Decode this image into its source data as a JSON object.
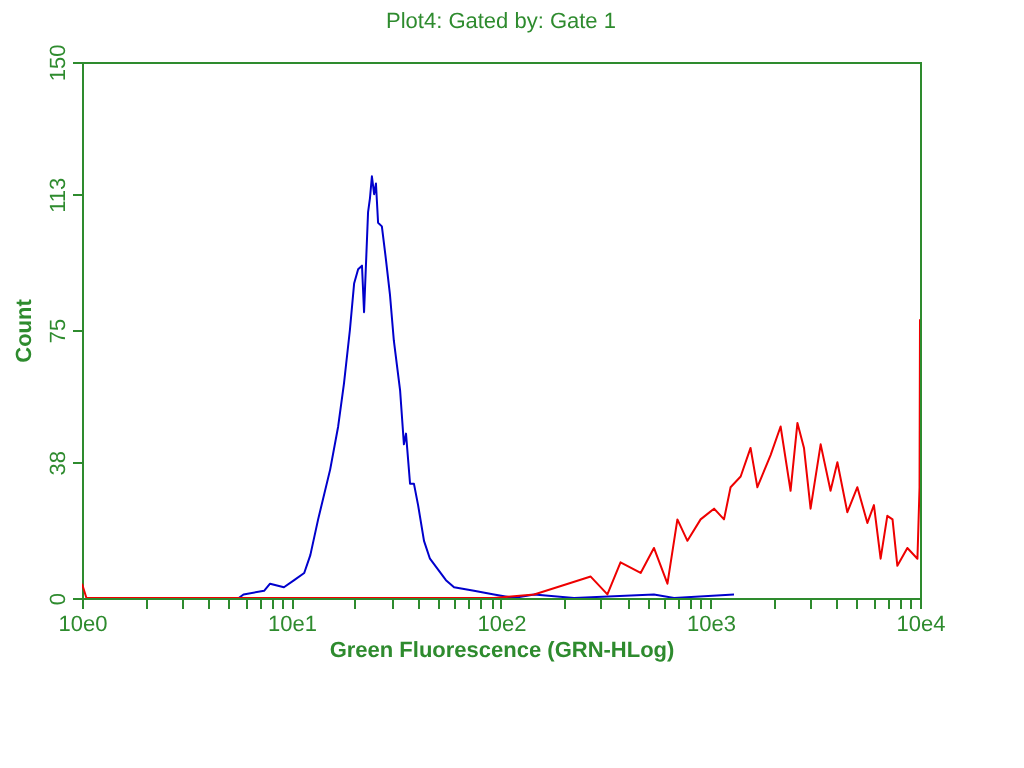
{
  "chart_data": {
    "type": "line",
    "title": "Plot4:  Gated by: Gate 1",
    "xlabel": "Green Fluorescence (GRN-HLog)",
    "ylabel": "Count",
    "log": "x",
    "grid": false,
    "xlim": [
      10,
      100000
    ],
    "ylim": [
      0,
      150
    ],
    "yticks": [
      0,
      38,
      75,
      113,
      150
    ],
    "xticks": [
      {
        "value": 10,
        "label": "10e0"
      },
      {
        "value": 20,
        "label": null
      },
      {
        "value": 30,
        "label": null
      },
      {
        "value": 40,
        "label": null
      },
      {
        "value": 50,
        "label": null
      },
      {
        "value": 60,
        "label": null
      },
      {
        "value": 70,
        "label": null
      },
      {
        "value": 80,
        "label": null
      },
      {
        "value": 90,
        "label": null
      },
      {
        "value": 100,
        "label": "10e1"
      },
      {
        "value": 200,
        "label": null
      },
      {
        "value": 300,
        "label": null
      },
      {
        "value": 400,
        "label": null
      },
      {
        "value": 500,
        "label": null
      },
      {
        "value": 600,
        "label": null
      },
      {
        "value": 700,
        "label": null
      },
      {
        "value": 800,
        "label": null
      },
      {
        "value": 900,
        "label": null
      },
      {
        "value": 1000,
        "label": "10e2"
      },
      {
        "value": 2000,
        "label": null
      },
      {
        "value": 3000,
        "label": null
      },
      {
        "value": 4000,
        "label": null
      },
      {
        "value": 5000,
        "label": null
      },
      {
        "value": 6000,
        "label": null
      },
      {
        "value": 7000,
        "label": null
      },
      {
        "value": 8000,
        "label": null
      },
      {
        "value": 9000,
        "label": null
      },
      {
        "value": 10000,
        "label": "10e3"
      },
      {
        "value": 20000,
        "label": null
      },
      {
        "value": 30000,
        "label": null
      },
      {
        "value": 40000,
        "label": null
      },
      {
        "value": 50000,
        "label": null
      },
      {
        "value": 60000,
        "label": null
      },
      {
        "value": 70000,
        "label": null
      },
      {
        "value": 80000,
        "label": null
      },
      {
        "value": 90000,
        "label": null
      },
      {
        "value": 100000,
        "label": "10e4"
      }
    ],
    "series": [
      {
        "color": "#0000cc",
        "x": [
          56,
          59,
          74,
          79,
          92,
          103,
          115,
          123,
          134,
          153,
          167,
          178,
          190,
          199,
          208,
          217,
          222,
          232,
          237,
          242,
          248,
          253,
          259,
          270,
          282,
          295,
          308,
          330,
          344,
          352,
          368,
          384,
          402,
          429,
          458,
          500,
          546,
          597,
          743,
          926,
          1150,
          1440,
          2230,
          5370,
          6700,
          12950
        ],
        "values": [
          0,
          1,
          2,
          4,
          3,
          5,
          7,
          12,
          22,
          36,
          48,
          60,
          75,
          88,
          92,
          93,
          80,
          108,
          112,
          118,
          113,
          116,
          105,
          104,
          95,
          85,
          72,
          58,
          43,
          46,
          32,
          32,
          26,
          16,
          11,
          8,
          5,
          3,
          2,
          1,
          0,
          1,
          0,
          1,
          0,
          1
        ]
      },
      {
        "color": "#ee0000",
        "x": [
          10,
          10.5,
          926,
          1440,
          2070,
          2680,
          3220,
          3720,
          4640,
          5370,
          6230,
          6950,
          7760,
          8970,
          10400,
          11600,
          12470,
          13930,
          15530,
          16740,
          19360,
          21610,
          24110,
          26000,
          27940,
          30040,
          33560,
          37410,
          40330,
          45000,
          50230,
          56090,
          60260,
          64860,
          69820,
          73940,
          77980,
          87030,
          97220,
          99500,
          100000
        ],
        "values": [
          4,
          0,
          0,
          1,
          3.9,
          6,
          1,
          10,
          7,
          14,
          4,
          22,
          16,
          22,
          25,
          22,
          31,
          34,
          42,
          31,
          40,
          48,
          30,
          49,
          42,
          25,
          43,
          30,
          38,
          24,
          31,
          21,
          26,
          11,
          23,
          22,
          9,
          14,
          11,
          31,
          78
        ]
      }
    ]
  }
}
